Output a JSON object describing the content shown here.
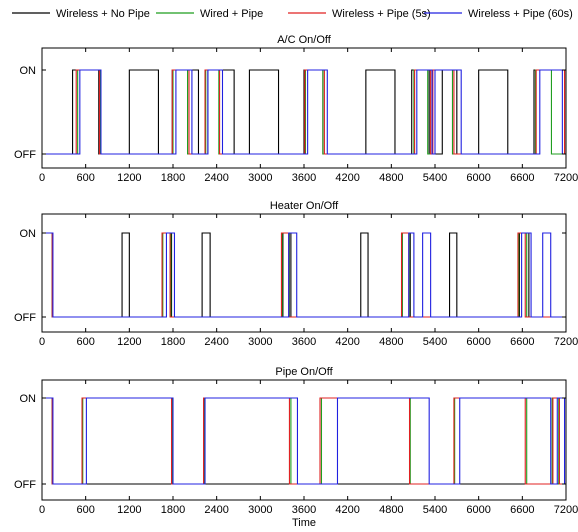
{
  "legend": [
    {
      "label": "Wireless + No Pipe",
      "color": "#000000"
    },
    {
      "label": "Wired + Pipe",
      "color": "#1f9e1f"
    },
    {
      "label": "Wireless + Pipe (5s)",
      "color": "#e02020"
    },
    {
      "label": "Wireless + Pipe (60s)",
      "color": "#2020e0"
    }
  ],
  "chart_data": [
    {
      "type": "line",
      "title": "A/C On/Off",
      "xlabel": "",
      "ylabel": "",
      "xlim": [
        0,
        7200
      ],
      "ylim": [
        0,
        1
      ],
      "xticks": [
        0,
        600,
        1200,
        1800,
        2400,
        3000,
        3600,
        4200,
        4800,
        5400,
        6000,
        6600,
        7200
      ],
      "yticklabels": [
        "OFF",
        "ON"
      ],
      "grid": false,
      "series": [
        {
          "name": "Wireless + No Pipe",
          "color": "#000000",
          "intervals": [
            [
              420,
              780
            ],
            [
              1200,
              1600
            ],
            [
              1790,
              2150
            ],
            [
              2280,
              2640
            ],
            [
              2850,
              3250
            ],
            [
              3600,
              3860
            ],
            [
              4450,
              4850
            ],
            [
              5080,
              5320
            ],
            [
              5500,
              5700
            ],
            [
              6000,
              6400
            ],
            [
              6760,
              7180
            ]
          ]
        },
        {
          "name": "Wired + Pipe",
          "color": "#1f9e1f",
          "intervals": [
            [
              490,
              800
            ],
            [
              1800,
              2000
            ],
            [
              2250,
              2430
            ],
            [
              3620,
              3860
            ],
            [
              5110,
              5300
            ],
            [
              5360,
              5640
            ],
            [
              6780,
              7000
            ]
          ]
        },
        {
          "name": "Wireless + Pipe (5s)",
          "color": "#e02020",
          "intervals": [
            [
              470,
              790
            ],
            [
              1790,
              2020
            ],
            [
              2240,
              2440
            ],
            [
              3610,
              3880
            ],
            [
              5120,
              5340
            ],
            [
              5370,
              5660
            ],
            [
              6790,
              7180
            ]
          ]
        },
        {
          "name": "Wireless + Pipe (60s)",
          "color": "#2020e0",
          "intervals": [
            [
              520,
              810
            ],
            [
              1840,
              2060
            ],
            [
              2280,
              2480
            ],
            [
              3650,
              3920
            ],
            [
              5150,
              5360
            ],
            [
              5400,
              5760
            ],
            [
              6840,
              7150
            ]
          ]
        }
      ]
    },
    {
      "type": "line",
      "title": "Heater On/Off",
      "xlabel": "",
      "ylabel": "",
      "xlim": [
        0,
        7200
      ],
      "ylim": [
        0,
        1
      ],
      "xticks": [
        0,
        600,
        1200,
        1800,
        2400,
        3000,
        3600,
        4200,
        4800,
        5400,
        6000,
        6600,
        7200
      ],
      "yticklabels": [
        "OFF",
        "ON"
      ],
      "grid": false,
      "series": [
        {
          "name": "Wireless + No Pipe",
          "color": "#000000",
          "intervals": [
            [
              0,
              140
            ],
            [
              1100,
              1200
            ],
            [
              1650,
              1780
            ],
            [
              2200,
              2310
            ],
            [
              3310,
              3420
            ],
            [
              4380,
              4480
            ],
            [
              4950,
              5060
            ],
            [
              5600,
              5700
            ],
            [
              6560,
              6690
            ]
          ]
        },
        {
          "name": "Wired + Pipe",
          "color": "#1f9e1f",
          "intervals": [
            [
              0,
              140
            ],
            [
              1660,
              1770
            ],
            [
              3300,
              3400
            ],
            [
              4950,
              5050
            ],
            [
              6550,
              6660
            ]
          ]
        },
        {
          "name": "Wireless + Pipe (5s)",
          "color": "#e02020",
          "intervals": [
            [
              0,
              140
            ],
            [
              1650,
              1760
            ],
            [
              3290,
              3390
            ],
            [
              4940,
              5040
            ],
            [
              6540,
              6640
            ]
          ]
        },
        {
          "name": "Wireless + Pipe (60s)",
          "color": "#2020e0",
          "intervals": [
            [
              0,
              150
            ],
            [
              1710,
              1820
            ],
            [
              3390,
              3500
            ],
            [
              5040,
              5110
            ],
            [
              5230,
              5340
            ],
            [
              6590,
              6720
            ],
            [
              6880,
              6990
            ]
          ]
        }
      ]
    },
    {
      "type": "line",
      "title": "Pipe On/Off",
      "xlabel": "Time",
      "ylabel": "",
      "xlim": [
        0,
        7200
      ],
      "ylim": [
        0,
        1
      ],
      "xticks": [
        0,
        600,
        1200,
        1800,
        2400,
        3000,
        3600,
        4200,
        4800,
        5400,
        6000,
        6600,
        7200
      ],
      "yticklabels": [
        "OFF",
        "ON"
      ],
      "grid": false,
      "series": [
        {
          "name": "Wireless + No Pipe",
          "color": "#000000",
          "intervals": [
            [
              0,
              140
            ]
          ]
        },
        {
          "name": "Wired + Pipe",
          "color": "#1f9e1f",
          "intervals": [
            [
              0,
              140
            ],
            [
              560,
              1790
            ],
            [
              2230,
              3420
            ],
            [
              3840,
              5060
            ],
            [
              5670,
              6660
            ],
            [
              7010,
              7100
            ]
          ]
        },
        {
          "name": "Wireless + Pipe (5s)",
          "color": "#e02020",
          "intervals": [
            [
              0,
              140
            ],
            [
              550,
              1780
            ],
            [
              2220,
              3400
            ],
            [
              3820,
              5050
            ],
            [
              5660,
              6640
            ],
            [
              7020,
              7110
            ]
          ]
        },
        {
          "name": "Wireless + Pipe (60s)",
          "color": "#2020e0",
          "intervals": [
            [
              0,
              150
            ],
            [
              610,
              1800
            ],
            [
              2240,
              3510
            ],
            [
              4060,
              5320
            ],
            [
              5740,
              6990
            ],
            [
              7080,
              7180
            ]
          ]
        }
      ]
    }
  ]
}
